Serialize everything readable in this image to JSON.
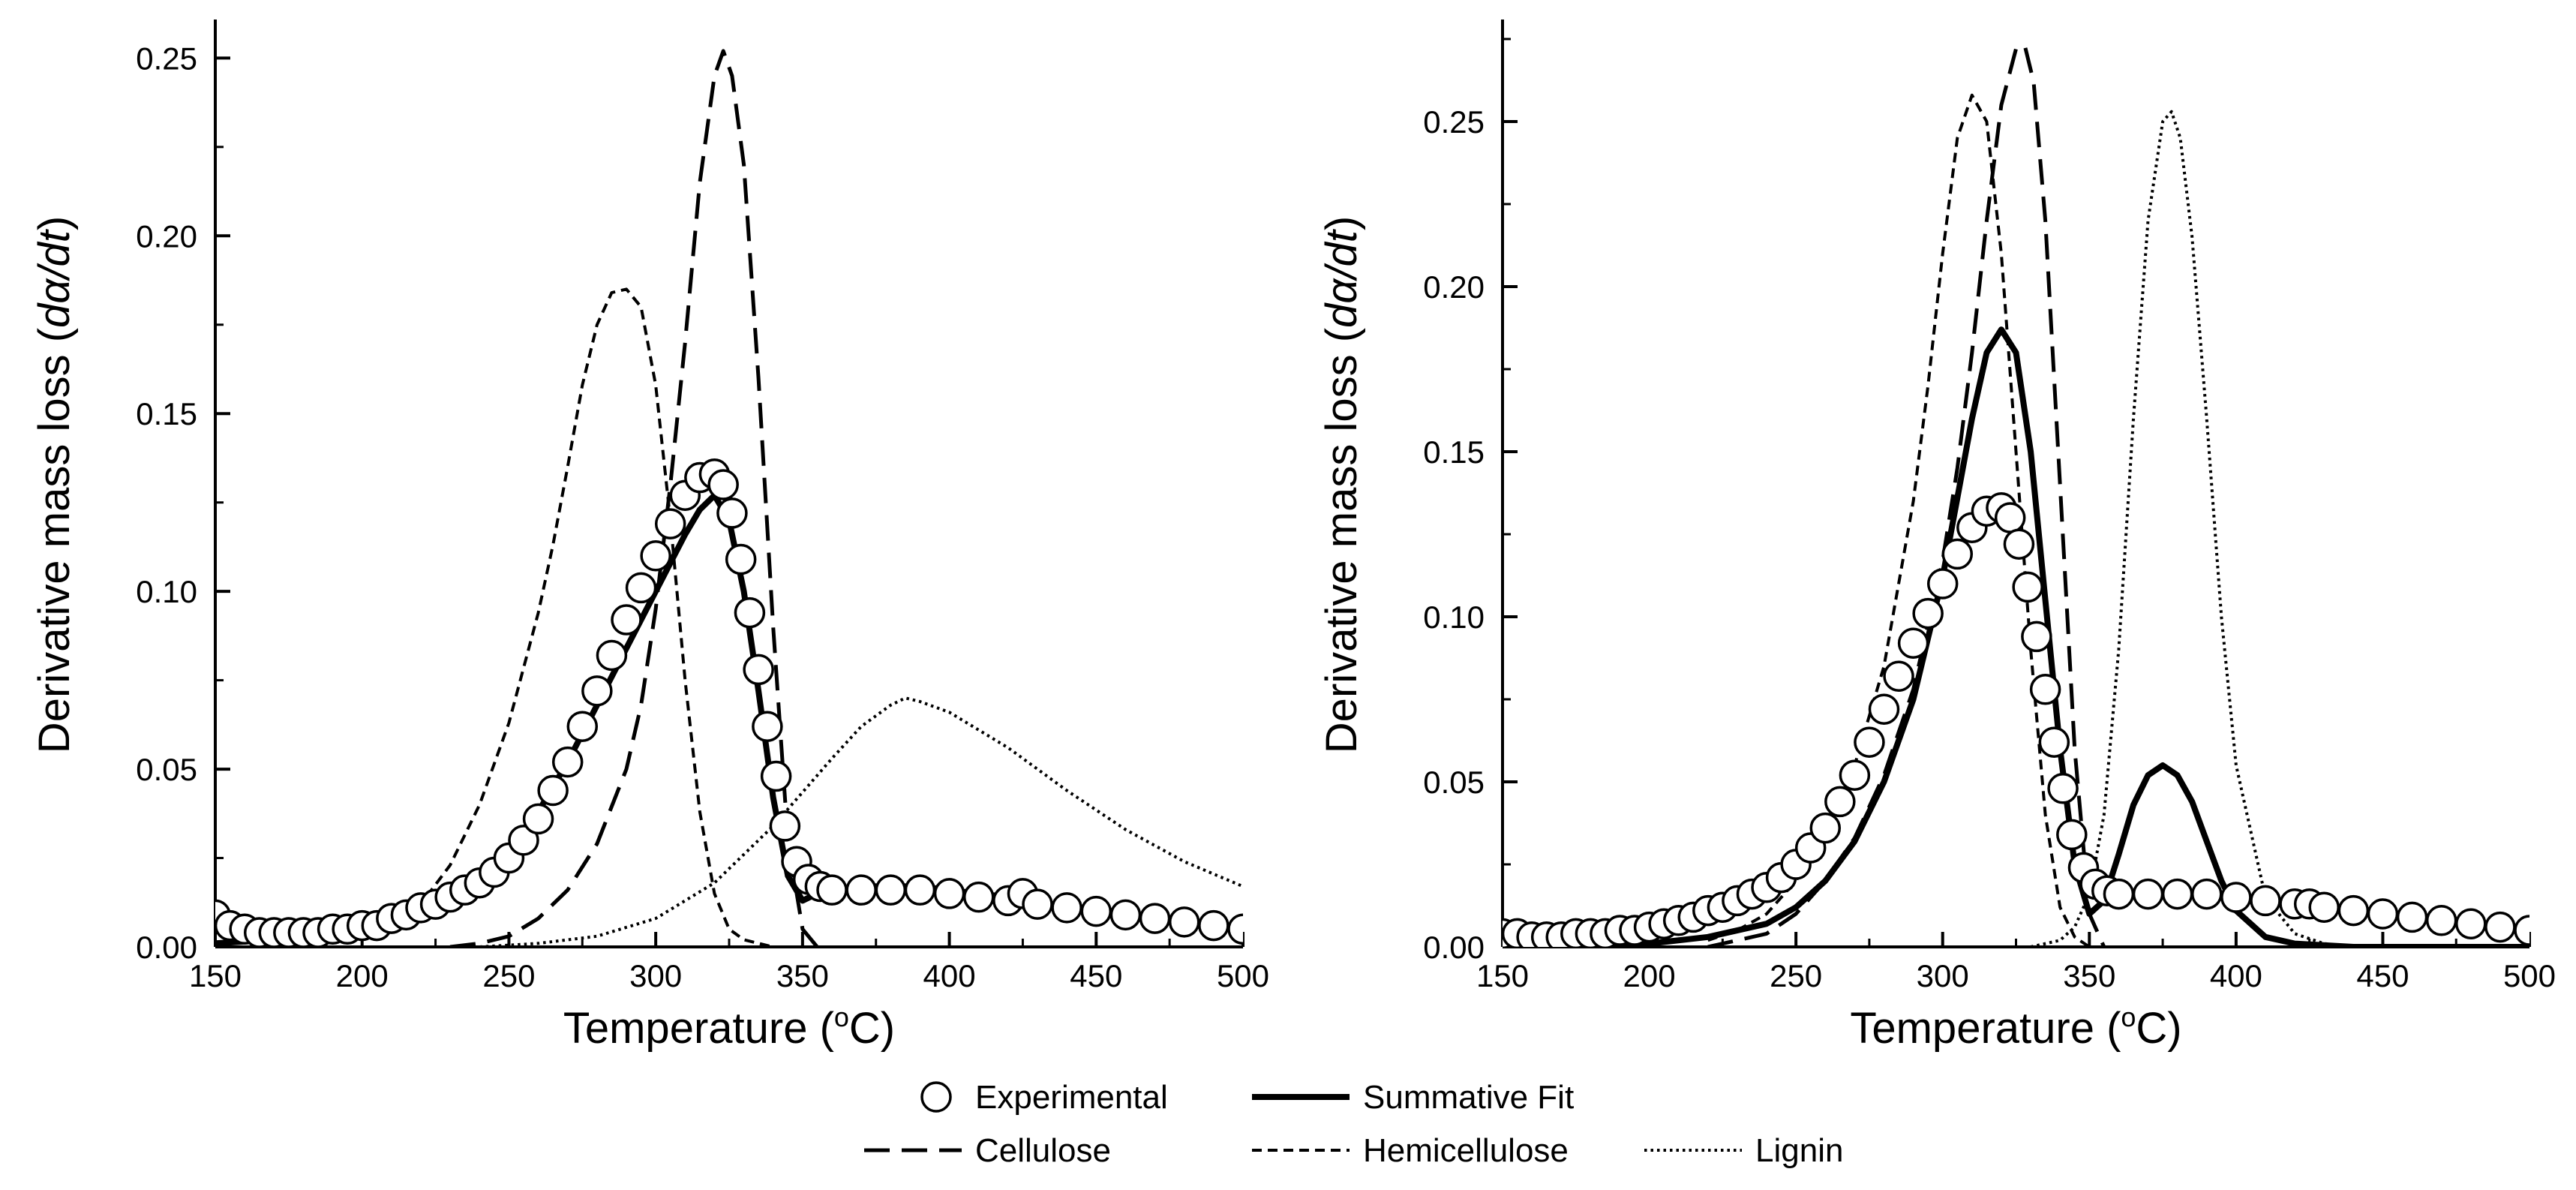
{
  "chart_data": [
    {
      "type": "line",
      "panel": "left",
      "xlabel": "Temperature (oC)",
      "xlabel_parts": {
        "pre": "Temperature (",
        "sup": "o",
        "post": "C)"
      },
      "ylabel": "Derivative mass loss (dα/dt)",
      "ylabel_parts": {
        "pre": "Derivative mass loss (",
        "italic": "dα/dt",
        "post": ")"
      },
      "xlim": [
        150,
        500
      ],
      "ylim": [
        0,
        0.26
      ],
      "xticks": [
        150,
        200,
        250,
        300,
        350,
        400,
        450,
        500
      ],
      "xtick_labels": [
        "150",
        "200",
        "250",
        "300",
        "350",
        "400",
        "450",
        "500"
      ],
      "yticks": [
        0.0,
        0.05,
        0.1,
        0.15,
        0.2,
        0.25
      ],
      "ytick_labels": [
        "0.00",
        "0.05",
        "0.10",
        "0.15",
        "0.20",
        "0.25"
      ],
      "series": [
        {
          "name": "Experimental",
          "style": "circles",
          "x": [
            150,
            155,
            160,
            165,
            170,
            175,
            180,
            185,
            190,
            195,
            200,
            205,
            210,
            215,
            220,
            225,
            230,
            235,
            240,
            245,
            250,
            255,
            260,
            265,
            270,
            275,
            280,
            285,
            290,
            295,
            300,
            305,
            310,
            315,
            320,
            323,
            326,
            329,
            332,
            335,
            338,
            341,
            344,
            348,
            352,
            356,
            360,
            370,
            380,
            390,
            400,
            410,
            420,
            425,
            430,
            440,
            450,
            460,
            470,
            480,
            490,
            500
          ],
          "y": [
            0.009,
            0.006,
            0.005,
            0.004,
            0.004,
            0.004,
            0.004,
            0.004,
            0.005,
            0.005,
            0.006,
            0.006,
            0.008,
            0.009,
            0.011,
            0.012,
            0.014,
            0.016,
            0.018,
            0.021,
            0.025,
            0.03,
            0.036,
            0.044,
            0.052,
            0.062,
            0.072,
            0.082,
            0.092,
            0.101,
            0.11,
            0.119,
            0.127,
            0.132,
            0.133,
            0.13,
            0.122,
            0.109,
            0.094,
            0.078,
            0.062,
            0.048,
            0.034,
            0.024,
            0.019,
            0.017,
            0.016,
            0.016,
            0.016,
            0.016,
            0.015,
            0.014,
            0.013,
            0.015,
            0.012,
            0.011,
            0.01,
            0.009,
            0.008,
            0.007,
            0.006,
            0.005
          ]
        },
        {
          "name": "Summative Fit",
          "style": "solid-thick",
          "x": [
            150,
            170,
            190,
            200,
            210,
            220,
            230,
            240,
            250,
            260,
            270,
            280,
            290,
            300,
            305,
            310,
            315,
            320,
            325,
            330,
            335,
            340,
            345,
            350,
            355,
            360,
            370,
            380,
            390,
            400,
            420,
            440,
            460,
            480,
            500
          ],
          "y": [
            0.001,
            0.002,
            0.003,
            0.004,
            0.006,
            0.009,
            0.013,
            0.018,
            0.027,
            0.038,
            0.052,
            0.068,
            0.084,
            0.1,
            0.108,
            0.116,
            0.123,
            0.127,
            0.12,
            0.1,
            0.072,
            0.042,
            0.02,
            0.013,
            0.015,
            0.016,
            0.017,
            0.017,
            0.017,
            0.016,
            0.014,
            0.011,
            0.009,
            0.007,
            0.005
          ]
        },
        {
          "name": "Cellulose",
          "style": "long-dash",
          "x": [
            230,
            240,
            250,
            260,
            270,
            280,
            290,
            295,
            300,
            305,
            310,
            315,
            320,
            323,
            326,
            330,
            335,
            340,
            345,
            350,
            355
          ],
          "y": [
            0.0,
            0.001,
            0.003,
            0.008,
            0.016,
            0.029,
            0.05,
            0.068,
            0.095,
            0.13,
            0.17,
            0.215,
            0.245,
            0.252,
            0.245,
            0.22,
            0.16,
            0.09,
            0.03,
            0.005,
            0.0
          ]
        },
        {
          "name": "Hemicellulose",
          "style": "short-dash",
          "x": [
            200,
            210,
            220,
            230,
            240,
            250,
            260,
            265,
            270,
            275,
            280,
            285,
            290,
            295,
            300,
            305,
            310,
            315,
            320,
            325,
            330,
            335,
            340
          ],
          "y": [
            0.002,
            0.006,
            0.012,
            0.023,
            0.04,
            0.063,
            0.094,
            0.113,
            0.135,
            0.158,
            0.175,
            0.184,
            0.185,
            0.18,
            0.158,
            0.12,
            0.075,
            0.038,
            0.015,
            0.005,
            0.002,
            0.001,
            0.0
          ]
        },
        {
          "name": "Lignin",
          "style": "dotted",
          "x": [
            240,
            260,
            280,
            300,
            320,
            340,
            360,
            370,
            380,
            385,
            390,
            400,
            420,
            440,
            460,
            480,
            500
          ],
          "y": [
            0.0,
            0.001,
            0.003,
            0.008,
            0.018,
            0.034,
            0.053,
            0.062,
            0.068,
            0.07,
            0.069,
            0.066,
            0.056,
            0.044,
            0.033,
            0.024,
            0.017
          ]
        }
      ]
    },
    {
      "type": "line",
      "panel": "right",
      "xlabel": "Temperature (oC)",
      "xlabel_parts": {
        "pre": "Temperature (",
        "sup": "o",
        "post": "C)"
      },
      "ylabel": "Derivative mass loss (dα/dt)",
      "ylabel_parts": {
        "pre": "Derivative mass loss (",
        "italic": "dα/dt",
        "post": ")"
      },
      "xlim": [
        150,
        500
      ],
      "ylim": [
        0,
        0.28
      ],
      "xticks": [
        150,
        200,
        250,
        300,
        350,
        400,
        450,
        500
      ],
      "xtick_labels": [
        "150",
        "200",
        "250",
        "300",
        "350",
        "400",
        "450",
        "500"
      ],
      "yticks": [
        0.0,
        0.05,
        0.1,
        0.15,
        0.2,
        0.25
      ],
      "ytick_labels": [
        "0.00",
        "0.05",
        "0.10",
        "0.15",
        "0.20",
        "0.25"
      ],
      "series": [
        {
          "name": "Experimental",
          "style": "circles",
          "x": [
            150,
            155,
            160,
            165,
            170,
            175,
            180,
            185,
            190,
            195,
            200,
            205,
            210,
            215,
            220,
            225,
            230,
            235,
            240,
            245,
            250,
            255,
            260,
            265,
            270,
            275,
            280,
            285,
            290,
            295,
            300,
            305,
            310,
            315,
            320,
            323,
            326,
            329,
            332,
            335,
            338,
            341,
            344,
            348,
            352,
            356,
            360,
            370,
            380,
            390,
            400,
            410,
            420,
            425,
            430,
            440,
            450,
            460,
            470,
            480,
            490,
            500
          ],
          "y": [
            0.004,
            0.004,
            0.003,
            0.003,
            0.003,
            0.004,
            0.004,
            0.004,
            0.005,
            0.005,
            0.006,
            0.007,
            0.008,
            0.009,
            0.011,
            0.012,
            0.014,
            0.016,
            0.018,
            0.021,
            0.025,
            0.03,
            0.036,
            0.044,
            0.052,
            0.062,
            0.072,
            0.082,
            0.092,
            0.101,
            0.11,
            0.119,
            0.127,
            0.132,
            0.133,
            0.13,
            0.122,
            0.109,
            0.094,
            0.078,
            0.062,
            0.048,
            0.034,
            0.024,
            0.019,
            0.017,
            0.016,
            0.016,
            0.016,
            0.016,
            0.015,
            0.014,
            0.013,
            0.013,
            0.012,
            0.011,
            0.01,
            0.009,
            0.008,
            0.007,
            0.006,
            0.005
          ]
        },
        {
          "name": "Summative Fit",
          "style": "solid-thick",
          "x": [
            150,
            180,
            200,
            220,
            240,
            250,
            260,
            270,
            280,
            290,
            300,
            305,
            310,
            315,
            320,
            325,
            330,
            335,
            340,
            345,
            350,
            355,
            360,
            365,
            370,
            375,
            380,
            385,
            390,
            395,
            400,
            410,
            420,
            440,
            460,
            480,
            500
          ],
          "y": [
            0.0,
            0.0,
            0.001,
            0.003,
            0.007,
            0.012,
            0.02,
            0.032,
            0.05,
            0.075,
            0.112,
            0.136,
            0.16,
            0.18,
            0.187,
            0.18,
            0.15,
            0.105,
            0.06,
            0.025,
            0.01,
            0.014,
            0.028,
            0.043,
            0.052,
            0.055,
            0.052,
            0.044,
            0.032,
            0.02,
            0.011,
            0.003,
            0.001,
            0.0,
            0.0,
            0.0,
            0.0
          ]
        },
        {
          "name": "Cellulose",
          "style": "long-dash",
          "x": [
            220,
            240,
            250,
            260,
            270,
            280,
            290,
            300,
            305,
            310,
            315,
            320,
            325,
            328,
            331,
            335,
            340,
            345,
            350,
            355
          ],
          "y": [
            0.0,
            0.004,
            0.01,
            0.02,
            0.033,
            0.052,
            0.078,
            0.117,
            0.145,
            0.18,
            0.22,
            0.255,
            0.272,
            0.273,
            0.262,
            0.22,
            0.14,
            0.06,
            0.01,
            0.0
          ]
        },
        {
          "name": "Hemicellulose",
          "style": "short-dash",
          "x": [
            220,
            230,
            240,
            250,
            260,
            270,
            280,
            290,
            295,
            300,
            305,
            310,
            315,
            320,
            325,
            330,
            335,
            340,
            345,
            350
          ],
          "y": [
            0.002,
            0.005,
            0.01,
            0.02,
            0.035,
            0.055,
            0.085,
            0.135,
            0.17,
            0.21,
            0.245,
            0.258,
            0.25,
            0.21,
            0.15,
            0.09,
            0.04,
            0.012,
            0.003,
            0.0
          ]
        },
        {
          "name": "Lignin",
          "style": "dotted",
          "x": [
            330,
            340,
            345,
            350,
            355,
            360,
            365,
            370,
            375,
            378,
            381,
            385,
            390,
            395,
            400,
            410,
            420,
            430,
            440
          ],
          "y": [
            0.0,
            0.002,
            0.006,
            0.016,
            0.04,
            0.09,
            0.16,
            0.22,
            0.25,
            0.253,
            0.245,
            0.215,
            0.16,
            0.1,
            0.055,
            0.015,
            0.004,
            0.001,
            0.0
          ]
        }
      ]
    }
  ],
  "legend": {
    "items": [
      {
        "label": "Experimental",
        "style": "circles"
      },
      {
        "label": "Summative Fit",
        "style": "solid-thick"
      },
      {
        "label": "Cellulose",
        "style": "long-dash"
      },
      {
        "label": "Hemicellulose",
        "style": "short-dash"
      },
      {
        "label": "Lignin",
        "style": "dotted"
      }
    ]
  }
}
